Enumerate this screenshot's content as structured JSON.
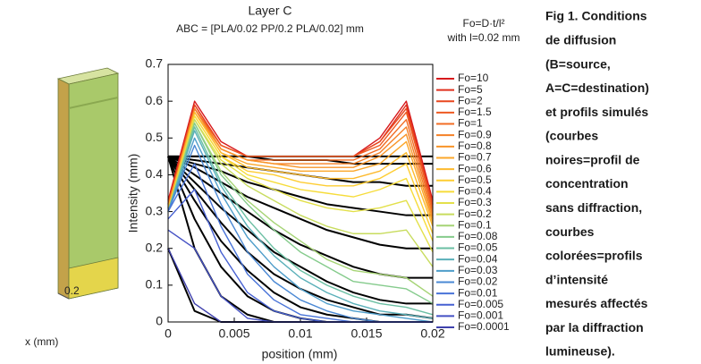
{
  "figure": {
    "slab_tick": "0.2",
    "slab_axis": "x (mm)"
  },
  "chart_data": {
    "type": "line",
    "title": "Layer C",
    "subtitle": "ABC = [PLA/0.02 PP/0.2 PLA/0.02] mm",
    "annotations": [
      "Fo=D·t/l²",
      "with l=0.02 mm"
    ],
    "x_label": "position (mm)",
    "y_label": "Intensity (mm)",
    "xlim": [
      0,
      0.02
    ],
    "ylim": [
      0,
      0.7
    ],
    "xticks": [
      0,
      0.005,
      0.01,
      0.015,
      0.02
    ],
    "yticks": [
      0,
      0.1,
      0.2,
      0.3,
      0.4,
      0.5,
      0.6,
      0.7
    ],
    "x": [
      0,
      0.002,
      0.004,
      0.006,
      0.008,
      0.01,
      0.012,
      0.014,
      0.016,
      0.018,
      0.02
    ],
    "series": [
      {
        "name": "Fo=10",
        "color": "#d7191c",
        "values": [
          0.33,
          0.6,
          0.49,
          0.45,
          0.45,
          0.45,
          0.45,
          0.45,
          0.5,
          0.6,
          0.33
        ]
      },
      {
        "name": "Fo=5",
        "color": "#e0301e",
        "values": [
          0.32,
          0.59,
          0.48,
          0.45,
          0.45,
          0.45,
          0.45,
          0.45,
          0.49,
          0.59,
          0.32
        ]
      },
      {
        "name": "Fo=2",
        "color": "#e8471f",
        "values": [
          0.32,
          0.59,
          0.48,
          0.45,
          0.45,
          0.45,
          0.45,
          0.45,
          0.49,
          0.58,
          0.32
        ]
      },
      {
        "name": "Fo=1.5",
        "color": "#ee5a22",
        "values": [
          0.32,
          0.58,
          0.48,
          0.45,
          0.45,
          0.45,
          0.45,
          0.45,
          0.48,
          0.57,
          0.31
        ]
      },
      {
        "name": "Fo=1",
        "color": "#f26d24",
        "values": [
          0.31,
          0.58,
          0.47,
          0.44,
          0.44,
          0.44,
          0.44,
          0.44,
          0.47,
          0.55,
          0.3
        ]
      },
      {
        "name": "Fo=0.9",
        "color": "#f58026",
        "values": [
          0.31,
          0.58,
          0.47,
          0.44,
          0.43,
          0.43,
          0.43,
          0.43,
          0.46,
          0.53,
          0.29
        ]
      },
      {
        "name": "Fo=0.8",
        "color": "#f89428",
        "values": [
          0.31,
          0.57,
          0.47,
          0.44,
          0.43,
          0.42,
          0.42,
          0.42,
          0.45,
          0.51,
          0.28
        ]
      },
      {
        "name": "Fo=0.7",
        "color": "#fba72b",
        "values": [
          0.31,
          0.57,
          0.46,
          0.43,
          0.42,
          0.41,
          0.41,
          0.41,
          0.43,
          0.49,
          0.27
        ]
      },
      {
        "name": "Fo=0.6",
        "color": "#fdba2e",
        "values": [
          0.31,
          0.57,
          0.46,
          0.42,
          0.41,
          0.4,
          0.39,
          0.39,
          0.41,
          0.46,
          0.26
        ]
      },
      {
        "name": "Fo=0.5",
        "color": "#fecd33",
        "values": [
          0.3,
          0.56,
          0.45,
          0.41,
          0.4,
          0.38,
          0.37,
          0.37,
          0.39,
          0.43,
          0.24
        ]
      },
      {
        "name": "Fo=0.4",
        "color": "#f6dc3a",
        "values": [
          0.3,
          0.56,
          0.45,
          0.4,
          0.38,
          0.36,
          0.35,
          0.34,
          0.36,
          0.39,
          0.22
        ]
      },
      {
        "name": "Fo=0.3",
        "color": "#e3e04a",
        "values": [
          0.3,
          0.55,
          0.44,
          0.39,
          0.36,
          0.33,
          0.31,
          0.3,
          0.31,
          0.33,
          0.19
        ]
      },
      {
        "name": "Fo=0.2",
        "color": "#c8dc5e",
        "values": [
          0.3,
          0.55,
          0.43,
          0.37,
          0.33,
          0.29,
          0.26,
          0.24,
          0.24,
          0.25,
          0.15
        ]
      },
      {
        "name": "Fo=0.1",
        "color": "#a6d475",
        "values": [
          0.3,
          0.54,
          0.41,
          0.33,
          0.27,
          0.22,
          0.17,
          0.14,
          0.13,
          0.12,
          0.07
        ]
      },
      {
        "name": "Fo=0.08",
        "color": "#85cb8c",
        "values": [
          0.3,
          0.54,
          0.4,
          0.32,
          0.25,
          0.19,
          0.15,
          0.11,
          0.1,
          0.09,
          0.05
        ]
      },
      {
        "name": "Fo=0.05",
        "color": "#6bbfa3",
        "values": [
          0.3,
          0.53,
          0.38,
          0.28,
          0.2,
          0.14,
          0.1,
          0.07,
          0.05,
          0.04,
          0.02
        ]
      },
      {
        "name": "Fo=0.04",
        "color": "#5ab0b9",
        "values": [
          0.3,
          0.52,
          0.37,
          0.26,
          0.18,
          0.12,
          0.08,
          0.05,
          0.03,
          0.02,
          0.01
        ]
      },
      {
        "name": "Fo=0.03",
        "color": "#4e9dca",
        "values": [
          0.3,
          0.5,
          0.35,
          0.23,
          0.15,
          0.09,
          0.05,
          0.03,
          0.02,
          0.01,
          0
        ]
      },
      {
        "name": "Fo=0.02",
        "color": "#4a88d4",
        "values": [
          0.3,
          0.48,
          0.32,
          0.19,
          0.11,
          0.06,
          0.03,
          0.01,
          0,
          0,
          0
        ]
      },
      {
        "name": "Fo=0.01",
        "color": "#4873d8",
        "values": [
          0.3,
          0.43,
          0.26,
          0.13,
          0.06,
          0.02,
          0.01,
          0,
          0,
          0,
          0
        ]
      },
      {
        "name": "Fo=0.005",
        "color": "#4660d2",
        "values": [
          0.28,
          0.36,
          0.19,
          0.08,
          0.03,
          0.01,
          0,
          0,
          0,
          0,
          0
        ]
      },
      {
        "name": "Fo=0.001",
        "color": "#4450c4",
        "values": [
          0.25,
          0.2,
          0.07,
          0.01,
          0,
          0,
          0,
          0,
          0,
          0,
          0
        ]
      },
      {
        "name": "Fo=0.0001",
        "color": "#3f41ad",
        "values": [
          0.2,
          0.05,
          0,
          0,
          0,
          0,
          0,
          0,
          0,
          0,
          0
        ]
      }
    ],
    "profiles": {
      "color": "#000000",
      "series": [
        {
          "values": [
            0.45,
            0.45,
            0.45,
            0.45,
            0.45,
            0.45,
            0.45,
            0.45,
            0.45,
            0.45,
            0.45
          ]
        },
        {
          "values": [
            0.45,
            0.45,
            0.45,
            0.45,
            0.44,
            0.44,
            0.44,
            0.43,
            0.43,
            0.43,
            0.43
          ]
        },
        {
          "values": [
            0.45,
            0.44,
            0.43,
            0.42,
            0.41,
            0.4,
            0.39,
            0.38,
            0.38,
            0.37,
            0.37
          ]
        },
        {
          "values": [
            0.45,
            0.43,
            0.41,
            0.38,
            0.36,
            0.34,
            0.32,
            0.31,
            0.3,
            0.29,
            0.29
          ]
        },
        {
          "values": [
            0.45,
            0.42,
            0.38,
            0.34,
            0.31,
            0.28,
            0.25,
            0.23,
            0.21,
            0.2,
            0.2
          ]
        },
        {
          "values": [
            0.45,
            0.4,
            0.35,
            0.3,
            0.25,
            0.21,
            0.18,
            0.15,
            0.13,
            0.12,
            0.12
          ]
        },
        {
          "values": [
            0.45,
            0.38,
            0.31,
            0.25,
            0.19,
            0.15,
            0.11,
            0.08,
            0.06,
            0.05,
            0.05
          ]
        },
        {
          "values": [
            0.45,
            0.36,
            0.27,
            0.19,
            0.13,
            0.09,
            0.06,
            0.04,
            0.02,
            0.02,
            0.01
          ]
        },
        {
          "values": [
            0.45,
            0.33,
            0.22,
            0.14,
            0.08,
            0.04,
            0.02,
            0.01,
            0,
            0,
            0
          ]
        },
        {
          "values": [
            0.45,
            0.28,
            0.15,
            0.07,
            0.03,
            0.01,
            0,
            0,
            0,
            0,
            0
          ]
        },
        {
          "values": [
            0.45,
            0.2,
            0.07,
            0.02,
            0,
            0,
            0,
            0,
            0,
            0,
            0
          ]
        },
        {
          "values": [
            0.2,
            0.03,
            0,
            0,
            0,
            0,
            0,
            0,
            0,
            0,
            0
          ]
        }
      ]
    }
  },
  "caption": [
    "Fig 1. Conditions",
    "de diffusion",
    "(B=source,",
    "A=C=destination)",
    "et profils simulés",
    "(courbes",
    "noires=profil de",
    "concentration",
    "sans diffraction,",
    "courbes",
    "colorées=profils",
    "d’intensité",
    "mesurés affectés",
    "par la diffraction",
    "lumineuse)."
  ]
}
